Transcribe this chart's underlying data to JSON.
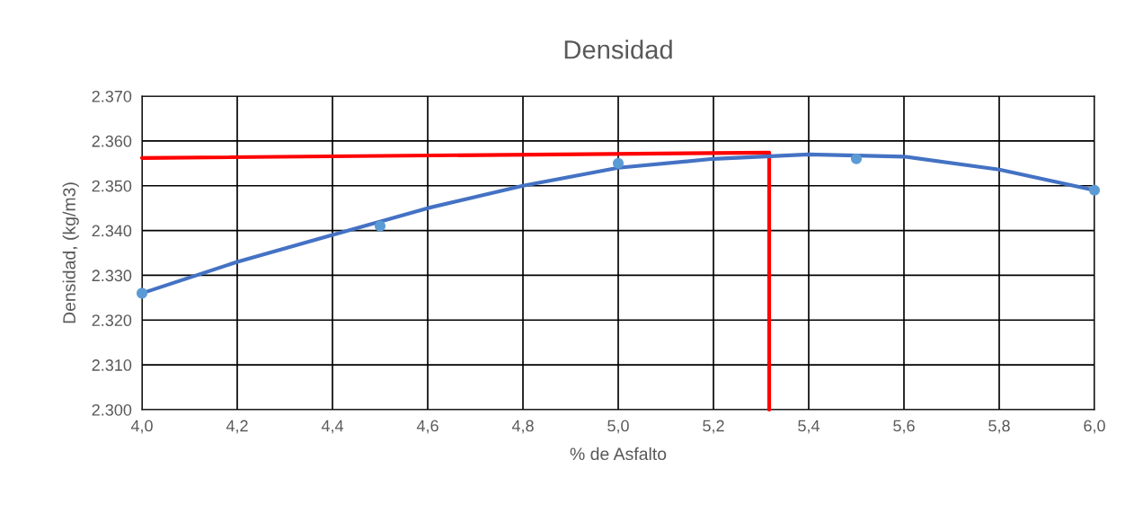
{
  "chart_data": {
    "type": "scatter",
    "title": "Densidad",
    "xlabel": "% de Asfalto",
    "ylabel": "Densidad, (kg/m3)",
    "x": [
      4.0,
      4.5,
      5.0,
      5.5,
      6.0
    ],
    "series": [
      {
        "type": "line",
        "color": "#ff0000",
        "x": [
          4.0,
          5.317,
          5.317
        ],
        "values": [
          2356.2,
          2357.4,
          2300
        ]
      },
      {
        "type": "line",
        "color": "#4472c4",
        "x": [
          4.0,
          4.2,
          4.4,
          4.6,
          4.8,
          5.0,
          5.2,
          5.4,
          5.6,
          5.8,
          6.0
        ],
        "values": [
          2326,
          2333,
          2339,
          2345,
          2350,
          2354,
          2356,
          2357,
          2356.5,
          2353.6,
          2349
        ]
      },
      {
        "color": "#5b9bd5",
        "marker": "circle",
        "values": [
          2326,
          2341,
          2355,
          2356,
          2349
        ]
      }
    ],
    "xlim": [
      4.0,
      6.0
    ],
    "ylim": [
      2300,
      2370
    ],
    "xticks": [
      {
        "value": 4.0,
        "label": "4,0"
      },
      {
        "value": 4.2,
        "label": "4,2"
      },
      {
        "value": 4.4,
        "label": "4,4"
      },
      {
        "value": 4.6,
        "label": "4,6"
      },
      {
        "value": 4.8,
        "label": "4,8"
      },
      {
        "value": 5.0,
        "label": "5,0"
      },
      {
        "value": 5.2,
        "label": "5,2"
      },
      {
        "value": 5.4,
        "label": "5,4"
      },
      {
        "value": 5.6,
        "label": "5,6"
      },
      {
        "value": 5.8,
        "label": "5,8"
      },
      {
        "value": 6.0,
        "label": "6,0"
      }
    ],
    "yticks": [
      {
        "value": 2300,
        "label": "2.300"
      },
      {
        "value": 2310,
        "label": "2.310"
      },
      {
        "value": 2320,
        "label": "2.320"
      },
      {
        "value": 2330,
        "label": "2.330"
      },
      {
        "value": 2340,
        "label": "2.340"
      },
      {
        "value": 2350,
        "label": "2.350"
      },
      {
        "value": 2360,
        "label": "2.360"
      },
      {
        "value": 2370,
        "label": "2.370"
      }
    ],
    "grid": true
  }
}
